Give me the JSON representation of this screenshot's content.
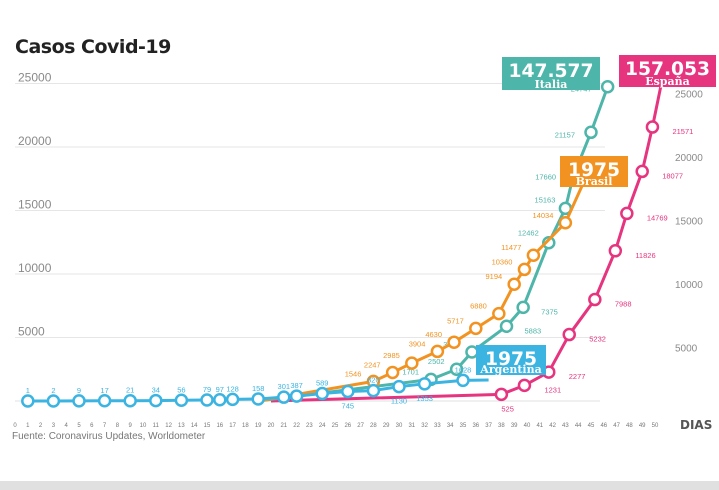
{
  "chart_data": {
    "type": "line",
    "title": "Casos Covid-19",
    "source": "Fuente: Coronavirus Updates, Worldometer",
    "xlabel": "DIAS",
    "ylabel": "",
    "xlim": [
      0,
      50
    ],
    "ylim": [
      0,
      25000
    ],
    "x_ticks": [
      0,
      1,
      2,
      3,
      4,
      5,
      6,
      7,
      8,
      9,
      10,
      11,
      12,
      13,
      14,
      15,
      16,
      17,
      18,
      19,
      20,
      21,
      22,
      23,
      24,
      25,
      26,
      27,
      28,
      29,
      30,
      31,
      32,
      33,
      34,
      35,
      36,
      37,
      38,
      39,
      40,
      41,
      42,
      43,
      44,
      45,
      46,
      47,
      48,
      49,
      50
    ],
    "y_ticks_left": [
      5000,
      10000,
      15000,
      20000,
      25000
    ],
    "y_ticks_right": [
      5000,
      10000,
      15000,
      20000,
      25000
    ],
    "grid": true,
    "series": [
      {
        "name": "Argentina",
        "color": "#3bb4e2",
        "box_value": "1975",
        "points": [
          [
            1,
            1
          ],
          [
            3,
            2
          ],
          [
            5,
            9
          ],
          [
            7,
            17
          ],
          [
            9,
            21
          ],
          [
            11,
            34
          ],
          [
            13,
            56
          ],
          [
            15,
            79
          ],
          [
            16,
            97
          ],
          [
            17,
            128
          ],
          [
            19,
            158
          ],
          [
            21,
            301
          ],
          [
            22,
            387
          ],
          [
            24,
            589
          ],
          [
            26,
            745
          ],
          [
            28,
            820
          ],
          [
            30,
            1130
          ],
          [
            32,
            1353
          ],
          [
            35,
            1628
          ]
        ],
        "line_end": [
          37,
          1650
        ]
      },
      {
        "name": "Brasil",
        "color": "#f29321",
        "box_value": "1975",
        "points": [
          [
            28,
            1546
          ],
          [
            29.5,
            2247
          ],
          [
            31,
            2985
          ],
          [
            33,
            3904
          ],
          [
            34.3,
            4630
          ],
          [
            36,
            5717
          ],
          [
            37.8,
            6880
          ],
          [
            39,
            9194
          ],
          [
            39.8,
            10360
          ],
          [
            40.5,
            11477
          ],
          [
            43,
            14034
          ]
        ],
        "line_start": [
          19,
          0
        ],
        "line_end": [
          45,
          18500
        ]
      },
      {
        "name": "Italia",
        "color": "#4db5a9",
        "box_value": "147.577",
        "points": [
          [
            32.5,
            1701
          ],
          [
            34.5,
            2502
          ],
          [
            35.7,
            3858
          ],
          [
            38.4,
            5883
          ],
          [
            39.7,
            7375
          ],
          [
            41.7,
            12462
          ],
          [
            43,
            15163
          ],
          [
            45,
            21157
          ],
          [
            46.3,
            24747
          ]
        ],
        "unmarked_points": [
          [
            43.6,
            17660
          ]
        ],
        "line_start": [
          19,
          0
        ]
      },
      {
        "name": "España",
        "color": "#e6347f",
        "box_value": "157.053",
        "points": [
          [
            38,
            525
          ],
          [
            39.8,
            1231
          ],
          [
            41.7,
            2277
          ],
          [
            43.3,
            5232
          ],
          [
            45.3,
            7988
          ],
          [
            46.9,
            11826
          ],
          [
            47.8,
            14769
          ],
          [
            49,
            18077
          ],
          [
            49.8,
            21571
          ]
        ],
        "line_start": [
          20,
          0
        ],
        "line_end": [
          50.6,
          25500
        ]
      }
    ]
  }
}
